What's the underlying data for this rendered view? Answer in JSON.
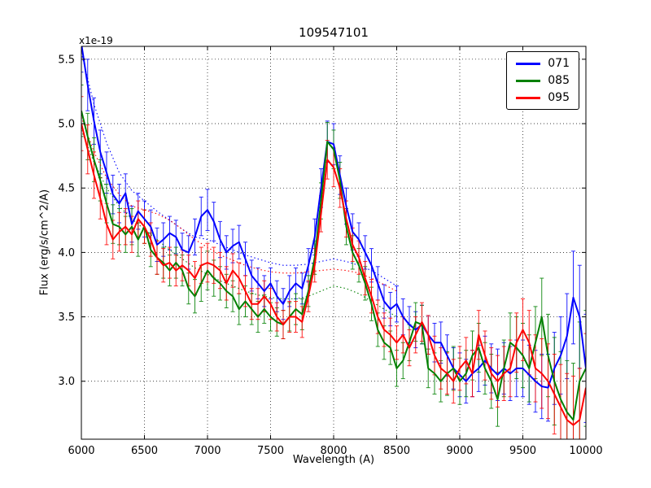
{
  "figure": {
    "title": "109547101",
    "offset_label": "x1e-19",
    "xlabel": "Wavelength (A)",
    "ylabel": "Flux (erg/s/cm^2/A)"
  },
  "legend": {
    "position": "upper right",
    "entries": [
      {
        "label": "071",
        "color": "#0000ff"
      },
      {
        "label": "085",
        "color": "#008000"
      },
      {
        "label": "095",
        "color": "#ff0000"
      }
    ]
  },
  "chart_data": {
    "type": "line",
    "title": "109547101",
    "xlabel": "Wavelength (A)",
    "ylabel": "Flux (erg/s/cm^2/A)",
    "y_offset_label": "x1e-19",
    "grid": true,
    "legend_position": "upper right",
    "xlim": [
      6000,
      10000
    ],
    "ylim": [
      2.55,
      5.6
    ],
    "xticks": [
      6000,
      6500,
      7000,
      7500,
      8000,
      8500,
      9000,
      9500,
      10000
    ],
    "yticks": [
      3.0,
      3.5,
      4.0,
      4.5,
      5.0,
      5.5
    ],
    "x": [
      6000,
      6050,
      6100,
      6150,
      6200,
      6250,
      6300,
      6350,
      6400,
      6450,
      6500,
      6550,
      6600,
      6650,
      6700,
      6750,
      6800,
      6850,
      6900,
      6950,
      7000,
      7050,
      7100,
      7150,
      7200,
      7250,
      7300,
      7350,
      7400,
      7450,
      7500,
      7550,
      7600,
      7650,
      7700,
      7750,
      7800,
      7850,
      7900,
      7950,
      8000,
      8050,
      8100,
      8150,
      8200,
      8250,
      8300,
      8350,
      8400,
      8450,
      8500,
      8550,
      8600,
      8650,
      8700,
      8750,
      8800,
      8850,
      8900,
      8950,
      9000,
      9050,
      9100,
      9150,
      9200,
      9250,
      9300,
      9350,
      9400,
      9450,
      9500,
      9550,
      9600,
      9650,
      9700,
      9750,
      9800,
      9850,
      9900,
      9950,
      10000
    ],
    "series": [
      {
        "name": "071",
        "color": "#0000ff",
        "values": [
          5.62,
          5.3,
          5.02,
          4.78,
          4.62,
          4.45,
          4.38,
          4.46,
          4.22,
          4.32,
          4.26,
          4.2,
          4.06,
          4.1,
          4.15,
          4.12,
          4.02,
          4.0,
          4.12,
          4.28,
          4.33,
          4.24,
          4.1,
          4.0,
          4.05,
          4.08,
          3.95,
          3.82,
          3.76,
          3.7,
          3.76,
          3.66,
          3.6,
          3.7,
          3.76,
          3.72,
          3.9,
          4.12,
          4.5,
          4.86,
          4.84,
          4.6,
          4.36,
          4.16,
          4.1,
          4.0,
          3.9,
          3.76,
          3.62,
          3.56,
          3.6,
          3.5,
          3.44,
          3.4,
          3.44,
          3.36,
          3.3,
          3.3,
          3.2,
          3.1,
          3.05,
          3.0,
          3.06,
          3.1,
          3.16,
          3.1,
          3.05,
          3.1,
          3.06,
          3.1,
          3.1,
          3.05,
          3.0,
          2.96,
          2.95,
          3.1,
          3.2,
          3.35,
          3.65,
          3.5,
          3.1
        ],
        "err": [
          0.22,
          0.2,
          0.18,
          0.17,
          0.16,
          0.15,
          0.15,
          0.15,
          0.14,
          0.14,
          0.14,
          0.13,
          0.13,
          0.13,
          0.13,
          0.13,
          0.13,
          0.13,
          0.14,
          0.15,
          0.16,
          0.15,
          0.14,
          0.13,
          0.13,
          0.13,
          0.13,
          0.12,
          0.12,
          0.12,
          0.12,
          0.12,
          0.12,
          0.12,
          0.12,
          0.12,
          0.13,
          0.14,
          0.15,
          0.16,
          0.16,
          0.15,
          0.14,
          0.14,
          0.13,
          0.13,
          0.13,
          0.13,
          0.13,
          0.13,
          0.14,
          0.14,
          0.14,
          0.14,
          0.15,
          0.15,
          0.15,
          0.16,
          0.16,
          0.16,
          0.17,
          0.17,
          0.18,
          0.18,
          0.19,
          0.19,
          0.2,
          0.2,
          0.21,
          0.22,
          0.22,
          0.23,
          0.24,
          0.25,
          0.26,
          0.28,
          0.3,
          0.33,
          0.36,
          0.4,
          0.42
        ]
      },
      {
        "name": "085",
        "color": "#008000",
        "values": [
          5.1,
          4.9,
          4.72,
          4.56,
          4.38,
          4.22,
          4.2,
          4.14,
          4.2,
          4.1,
          4.2,
          4.02,
          3.96,
          3.92,
          3.86,
          3.92,
          3.86,
          3.72,
          3.66,
          3.76,
          3.86,
          3.8,
          3.76,
          3.7,
          3.66,
          3.56,
          3.62,
          3.56,
          3.5,
          3.56,
          3.5,
          3.46,
          3.44,
          3.5,
          3.56,
          3.52,
          3.7,
          3.96,
          4.4,
          4.86,
          4.8,
          4.56,
          4.2,
          4.0,
          3.9,
          3.76,
          3.6,
          3.4,
          3.3,
          3.26,
          3.1,
          3.16,
          3.3,
          3.46,
          3.44,
          3.1,
          3.06,
          3.0,
          3.06,
          3.1,
          3.0,
          3.06,
          3.2,
          3.26,
          3.1,
          3.0,
          2.86,
          3.1,
          3.3,
          3.26,
          3.2,
          3.1,
          3.3,
          3.5,
          3.2,
          3.0,
          2.86,
          2.76,
          2.7,
          3.0,
          3.1
        ],
        "err": [
          0.2,
          0.18,
          0.17,
          0.16,
          0.15,
          0.15,
          0.14,
          0.14,
          0.14,
          0.13,
          0.13,
          0.13,
          0.13,
          0.12,
          0.12,
          0.12,
          0.12,
          0.12,
          0.13,
          0.14,
          0.15,
          0.14,
          0.13,
          0.13,
          0.12,
          0.12,
          0.12,
          0.12,
          0.12,
          0.11,
          0.11,
          0.11,
          0.11,
          0.11,
          0.12,
          0.12,
          0.12,
          0.13,
          0.14,
          0.15,
          0.15,
          0.14,
          0.14,
          0.13,
          0.13,
          0.13,
          0.13,
          0.13,
          0.13,
          0.13,
          0.14,
          0.14,
          0.14,
          0.15,
          0.15,
          0.15,
          0.16,
          0.16,
          0.17,
          0.17,
          0.18,
          0.18,
          0.19,
          0.19,
          0.2,
          0.21,
          0.21,
          0.22,
          0.23,
          0.24,
          0.25,
          0.26,
          0.28,
          0.3,
          0.32,
          0.34,
          0.37,
          0.4,
          0.44,
          0.46,
          0.45
        ]
      },
      {
        "name": "095",
        "color": "#ff0000",
        "values": [
          5.0,
          4.8,
          4.6,
          4.42,
          4.22,
          4.1,
          4.16,
          4.2,
          4.14,
          4.26,
          4.2,
          4.1,
          3.96,
          3.9,
          3.92,
          3.86,
          3.9,
          3.86,
          3.8,
          3.9,
          3.92,
          3.9,
          3.86,
          3.76,
          3.86,
          3.8,
          3.7,
          3.6,
          3.6,
          3.66,
          3.6,
          3.5,
          3.44,
          3.5,
          3.5,
          3.46,
          3.66,
          3.9,
          4.3,
          4.72,
          4.66,
          4.5,
          4.26,
          4.06,
          3.96,
          3.8,
          3.66,
          3.5,
          3.4,
          3.36,
          3.3,
          3.36,
          3.26,
          3.36,
          3.46,
          3.36,
          3.2,
          3.1,
          3.06,
          3.0,
          3.1,
          3.16,
          3.06,
          3.36,
          3.2,
          3.06,
          3.0,
          3.06,
          3.1,
          3.3,
          3.4,
          3.3,
          3.1,
          3.06,
          3.0,
          2.9,
          2.8,
          2.7,
          2.66,
          2.7,
          2.95
        ],
        "err": [
          0.21,
          0.19,
          0.18,
          0.16,
          0.16,
          0.15,
          0.15,
          0.14,
          0.14,
          0.14,
          0.13,
          0.13,
          0.13,
          0.13,
          0.12,
          0.12,
          0.12,
          0.12,
          0.13,
          0.14,
          0.15,
          0.14,
          0.14,
          0.13,
          0.13,
          0.12,
          0.12,
          0.12,
          0.12,
          0.12,
          0.12,
          0.11,
          0.11,
          0.12,
          0.12,
          0.12,
          0.12,
          0.13,
          0.14,
          0.15,
          0.15,
          0.15,
          0.14,
          0.13,
          0.13,
          0.13,
          0.13,
          0.13,
          0.13,
          0.13,
          0.13,
          0.14,
          0.14,
          0.14,
          0.15,
          0.15,
          0.15,
          0.16,
          0.16,
          0.17,
          0.17,
          0.18,
          0.18,
          0.19,
          0.19,
          0.2,
          0.2,
          0.21,
          0.22,
          0.23,
          0.24,
          0.25,
          0.26,
          0.27,
          0.29,
          0.31,
          0.33,
          0.36,
          0.38,
          0.4,
          0.42
        ]
      }
    ],
    "dotted_series": [
      {
        "name": "071-dotted",
        "color": "#0000ff",
        "x_start": 6000,
        "x_step": 100,
        "values": [
          5.55,
          5.15,
          4.85,
          4.62,
          4.48,
          4.4,
          4.32,
          4.25,
          4.18,
          4.12,
          4.1,
          4.06,
          4.02,
          3.98,
          3.95,
          3.92,
          3.9,
          3.9,
          3.91,
          3.93,
          3.95,
          3.93,
          3.9,
          3.86,
          3.8,
          3.74
        ]
      },
      {
        "name": "085-dotted",
        "color": "#008000",
        "x_start": 6000,
        "x_step": 100,
        "values": [
          4.95,
          4.7,
          4.5,
          4.36,
          4.26,
          4.18,
          4.1,
          4.02,
          3.95,
          3.88,
          3.83,
          3.78,
          3.74,
          3.7,
          3.67,
          3.65,
          3.64,
          3.64,
          3.66,
          3.7,
          3.74,
          3.72,
          3.68,
          3.62,
          3.56,
          3.5
        ]
      },
      {
        "name": "095-dotted",
        "color": "#ff0000",
        "x_start": 6000,
        "x_step": 100,
        "values": [
          5.05,
          4.78,
          4.58,
          4.45,
          4.36,
          4.33,
          4.3,
          4.25,
          4.18,
          4.1,
          4.04,
          3.98,
          3.94,
          3.9,
          3.87,
          3.85,
          3.84,
          3.84,
          3.85,
          3.86,
          3.87,
          3.86,
          3.84,
          3.8,
          3.75,
          3.7
        ]
      }
    ]
  }
}
